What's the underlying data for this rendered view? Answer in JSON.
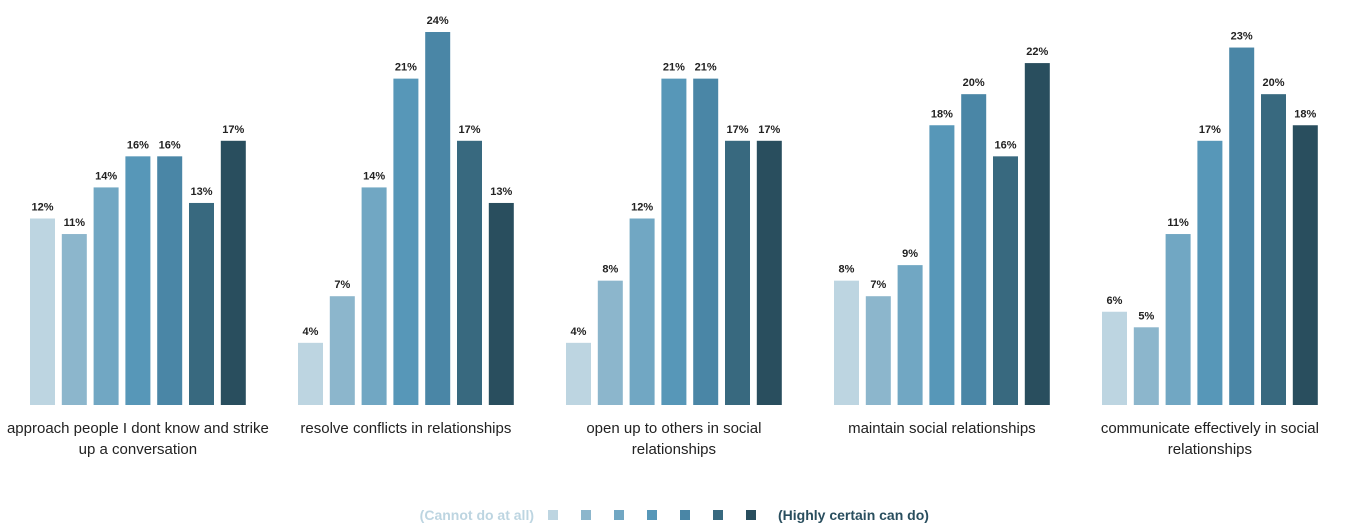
{
  "chart_data": {
    "type": "bar",
    "categories": [
      "approach people I dont know and strike up a conversation",
      "resolve conflicts in relationships",
      "open up to others in social relationships",
      "maintain social relationships",
      "communicate effectively in social relationships"
    ],
    "series": [
      {
        "name": "(Cannot do at all)",
        "color": "#bdd5e1",
        "values": [
          12,
          4,
          4,
          8,
          6
        ],
        "value_labels": [
          "12%",
          "4%",
          "4%",
          "8%",
          "6%"
        ]
      },
      {
        "name": null,
        "color": "#8cb6cc",
        "values": [
          11,
          7,
          8,
          7,
          5
        ],
        "value_labels": [
          "11%",
          "7%",
          "8%",
          "7%",
          "5%"
        ]
      },
      {
        "name": null,
        "color": "#71a7c3",
        "values": [
          14,
          14,
          12,
          9,
          11
        ],
        "value_labels": [
          "14%",
          "14%",
          "12%",
          "9%",
          "11%"
        ]
      },
      {
        "name": null,
        "color": "#5797b8",
        "values": [
          16,
          21,
          21,
          18,
          17
        ],
        "value_labels": [
          "16%",
          "21%",
          "21%",
          "18%",
          "17%"
        ]
      },
      {
        "name": null,
        "color": "#4a86a6",
        "values": [
          16,
          24,
          21,
          20,
          23
        ],
        "value_labels": [
          "16%",
          "24%",
          "21%",
          "20%",
          "23%"
        ]
      },
      {
        "name": null,
        "color": "#38697f",
        "values": [
          13,
          17,
          17,
          16,
          20
        ],
        "value_labels": [
          "13%",
          "17%",
          "17%",
          "16%",
          "20%"
        ]
      },
      {
        "name": "(Highly certain can do)",
        "color": "#294e5e",
        "values": [
          17,
          13,
          17,
          22,
          18
        ],
        "value_labels": [
          "17%",
          "13%",
          "17%",
          "22%",
          "18%"
        ]
      }
    ],
    "ylim": [
      0,
      24
    ]
  }
}
